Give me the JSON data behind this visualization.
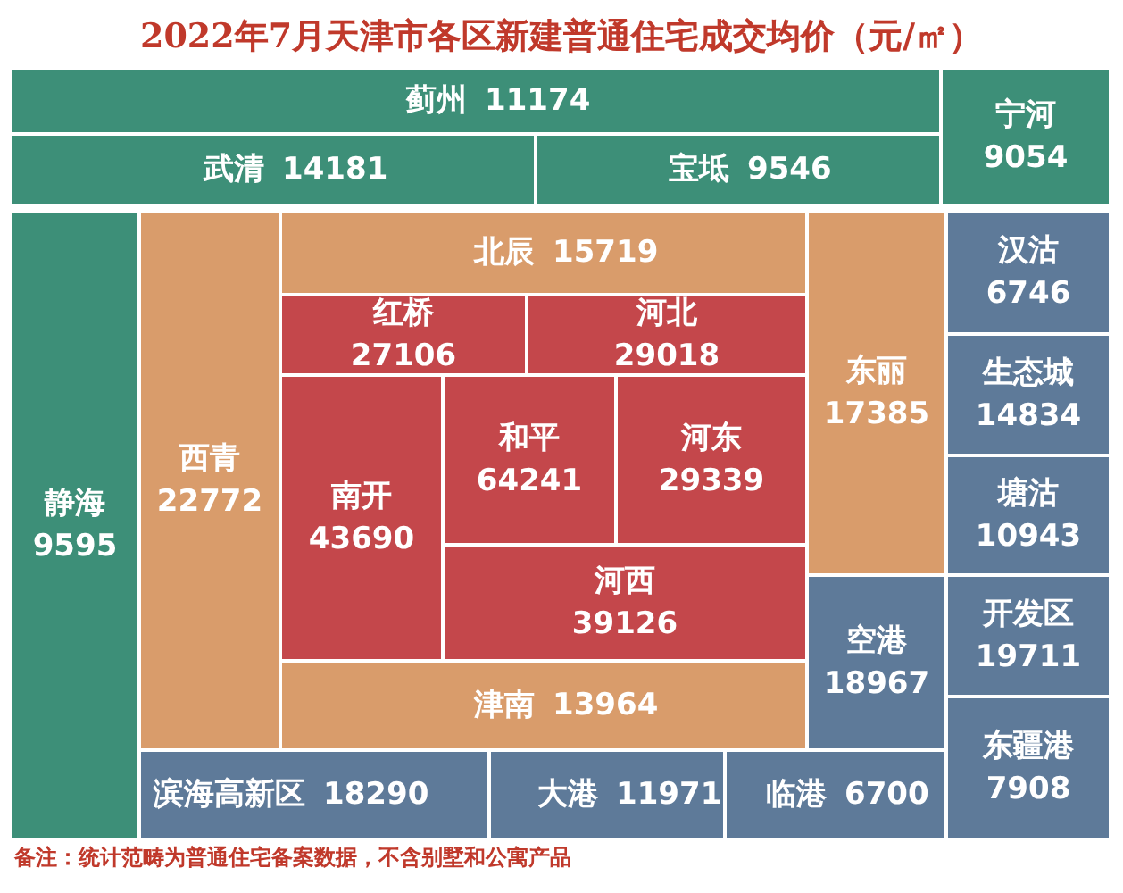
{
  "chart_data": {
    "type": "other",
    "title": "2022年7月天津市各区新建普通住宅成交均价（元/㎡）",
    "categories": [
      "蓟州",
      "宁河",
      "武清",
      "宝坻",
      "静海",
      "西青",
      "北辰",
      "东丽",
      "红桥",
      "河北",
      "南开",
      "和平",
      "河东",
      "河西",
      "津南",
      "空港",
      "滨海高新区",
      "大港",
      "临港",
      "汉沽",
      "生态城",
      "塘沽",
      "开发区",
      "东疆港"
    ],
    "values": [
      11174,
      9054,
      14181,
      9546,
      9595,
      22772,
      15719,
      17385,
      27106,
      29018,
      43690,
      64241,
      29339,
      39126,
      13964,
      18967,
      18290,
      11971,
      6700,
      6746,
      14834,
      10943,
      19711,
      7908
    ],
    "colors": [
      "#3d8f78",
      "#3d8f78",
      "#3d8f78",
      "#3d8f78",
      "#3d8f78",
      "#d99c6b",
      "#d99c6b",
      "#d99c6b",
      "#c4474b",
      "#c4474b",
      "#c4474b",
      "#c4474b",
      "#c4474b",
      "#c4474b",
      "#d99c6b",
      "#5e7a99",
      "#5e7a99",
      "#5e7a99",
      "#5e7a99",
      "#5e7a99",
      "#5e7a99",
      "#5e7a99",
      "#5e7a99",
      "#5e7a99"
    ],
    "data_labels": true,
    "annotations": [
      "备注：统计范畴为普通住宅备案数据，不含别墅和公寓产品"
    ]
  }
}
